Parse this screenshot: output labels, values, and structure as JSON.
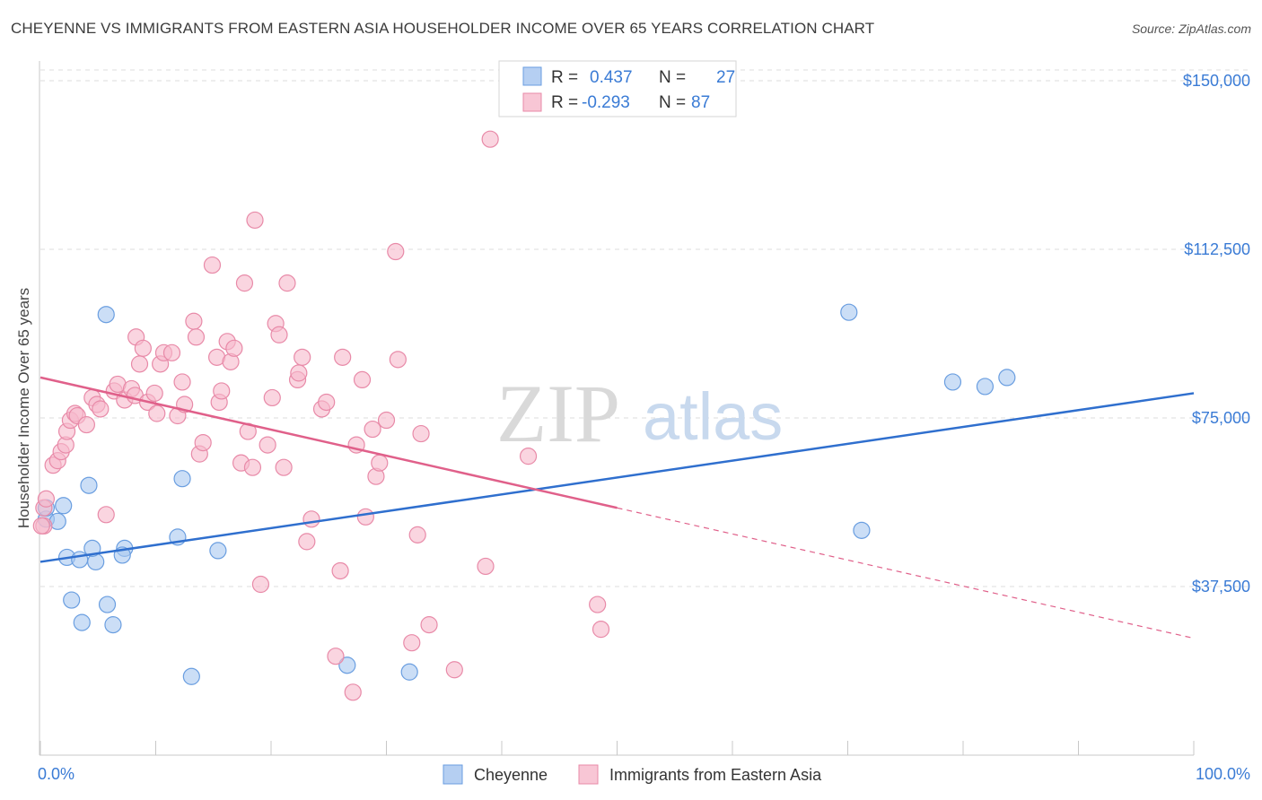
{
  "title": "CHEYENNE VS IMMIGRANTS FROM EASTERN ASIA HOUSEHOLDER INCOME OVER 65 YEARS CORRELATION CHART",
  "source": "Source: ZipAtlas.com",
  "watermark": {
    "part1": "ZIP",
    "part2": "atlas"
  },
  "legend": {
    "rows": [
      {
        "r_label": "R =",
        "r_value": "0.437",
        "n_label": "N =",
        "n_value": "27"
      },
      {
        "r_label": "R =",
        "r_value": "-0.293",
        "n_label": "N =",
        "n_value": "87"
      }
    ]
  },
  "bottom_legend": [
    "Cheyenne",
    "Immigrants from Eastern Asia"
  ],
  "chart_data": {
    "type": "scatter",
    "title": "CHEYENNE VS IMMIGRANTS FROM EASTERN ASIA HOUSEHOLDER INCOME OVER 65 YEARS CORRELATION CHART",
    "xlabel": "",
    "ylabel": "Householder Income Over 65 years",
    "xlim": [
      0,
      100
    ],
    "ylim": [
      0,
      153000
    ],
    "x_tick_labels": [
      "0.0%",
      "100.0%"
    ],
    "y_ticks": [
      37500,
      75000,
      112500,
      150000
    ],
    "y_tick_labels": [
      "$37,500",
      "$75,000",
      "$112,500",
      "$150,000"
    ],
    "grid": "horizontal dashed",
    "legend_position": "top-center",
    "colors": {
      "cheyenne_fill": "#a9c8f0",
      "cheyenne_stroke": "#6a9ee0",
      "cheyenne_line": "#2f6fce",
      "immigrants_fill": "#f6b9cc",
      "immigrants_stroke": "#e88aa8",
      "immigrants_line": "#e0608a",
      "axis_text": "#3a7bd5"
    },
    "series": [
      {
        "name": "Cheyenne",
        "points": [
          [
            0.5,
            52500
          ],
          [
            0.5,
            55000
          ],
          [
            2.0,
            55500
          ],
          [
            1.5,
            52000
          ],
          [
            4.2,
            60000
          ],
          [
            5.7,
            98000
          ],
          [
            2.3,
            44000
          ],
          [
            3.4,
            43500
          ],
          [
            4.8,
            43000
          ],
          [
            4.5,
            46000
          ],
          [
            7.3,
            46000
          ],
          [
            7.1,
            44500
          ],
          [
            11.9,
            48500
          ],
          [
            12.3,
            61500
          ],
          [
            15.4,
            45500
          ],
          [
            2.7,
            34500
          ],
          [
            3.6,
            29500
          ],
          [
            5.8,
            33500
          ],
          [
            6.3,
            29000
          ],
          [
            13.1,
            17500
          ],
          [
            26.6,
            20000
          ],
          [
            32.0,
            18500
          ],
          [
            70.1,
            98500
          ],
          [
            71.2,
            50000
          ],
          [
            79.1,
            83000
          ],
          [
            83.8,
            84000
          ],
          [
            81.9,
            82000
          ]
        ],
        "trend": {
          "x": [
            0,
            100
          ],
          "y": [
            43000,
            80500
          ],
          "style": "solid"
        }
      },
      {
        "name": "Immigrants from Eastern Asia",
        "points": [
          [
            0.3,
            55000
          ],
          [
            0.3,
            51000
          ],
          [
            0.5,
            57000
          ],
          [
            1.1,
            64500
          ],
          [
            1.5,
            65500
          ],
          [
            1.8,
            67500
          ],
          [
            2.2,
            69000
          ],
          [
            2.3,
            72000
          ],
          [
            2.6,
            74500
          ],
          [
            3.0,
            76000
          ],
          [
            3.2,
            75500
          ],
          [
            4.0,
            73500
          ],
          [
            4.5,
            79500
          ],
          [
            4.9,
            78000
          ],
          [
            5.2,
            77000
          ],
          [
            5.7,
            53500
          ],
          [
            6.4,
            81000
          ],
          [
            6.7,
            82500
          ],
          [
            7.3,
            79000
          ],
          [
            7.9,
            81500
          ],
          [
            8.2,
            80000
          ],
          [
            8.6,
            87000
          ],
          [
            8.3,
            93000
          ],
          [
            8.9,
            90500
          ],
          [
            9.3,
            78500
          ],
          [
            9.9,
            80500
          ],
          [
            10.1,
            76000
          ],
          [
            10.4,
            87000
          ],
          [
            10.7,
            89500
          ],
          [
            11.4,
            89500
          ],
          [
            11.9,
            75500
          ],
          [
            12.3,
            83000
          ],
          [
            12.5,
            78000
          ],
          [
            13.3,
            96500
          ],
          [
            13.5,
            93000
          ],
          [
            13.8,
            67000
          ],
          [
            14.1,
            69500
          ],
          [
            14.9,
            109000
          ],
          [
            15.3,
            88500
          ],
          [
            15.5,
            78500
          ],
          [
            15.7,
            81000
          ],
          [
            16.2,
            92000
          ],
          [
            16.5,
            87500
          ],
          [
            16.8,
            90500
          ],
          [
            17.4,
            65000
          ],
          [
            17.7,
            105000
          ],
          [
            18.0,
            72000
          ],
          [
            18.4,
            64000
          ],
          [
            18.6,
            119000
          ],
          [
            19.1,
            38000
          ],
          [
            19.7,
            69000
          ],
          [
            20.1,
            79500
          ],
          [
            20.4,
            96000
          ],
          [
            20.7,
            93500
          ],
          [
            21.1,
            64000
          ],
          [
            21.4,
            105000
          ],
          [
            22.3,
            83500
          ],
          [
            22.4,
            85000
          ],
          [
            22.7,
            88500
          ],
          [
            23.1,
            47500
          ],
          [
            23.5,
            52500
          ],
          [
            24.4,
            77000
          ],
          [
            24.8,
            78500
          ],
          [
            25.6,
            22000
          ],
          [
            26.0,
            41000
          ],
          [
            26.2,
            88500
          ],
          [
            27.1,
            14000
          ],
          [
            27.4,
            69000
          ],
          [
            27.9,
            83500
          ],
          [
            28.2,
            53000
          ],
          [
            28.8,
            72500
          ],
          [
            29.1,
            62000
          ],
          [
            29.4,
            65000
          ],
          [
            30.0,
            74500
          ],
          [
            30.8,
            112000
          ],
          [
            31.0,
            88000
          ],
          [
            32.2,
            25000
          ],
          [
            32.7,
            49000
          ],
          [
            33.0,
            71500
          ],
          [
            33.7,
            29000
          ],
          [
            35.9,
            19000
          ],
          [
            38.6,
            42000
          ],
          [
            39.0,
            137000
          ],
          [
            42.3,
            66500
          ],
          [
            48.3,
            33500
          ],
          [
            48.6,
            28000
          ],
          [
            0.1,
            51000
          ]
        ],
        "trend": {
          "x": [
            0,
            50,
            100
          ],
          "y": [
            84000,
            55000,
            26000
          ],
          "solid_until": 50,
          "style": "solid then dashed"
        }
      }
    ]
  }
}
